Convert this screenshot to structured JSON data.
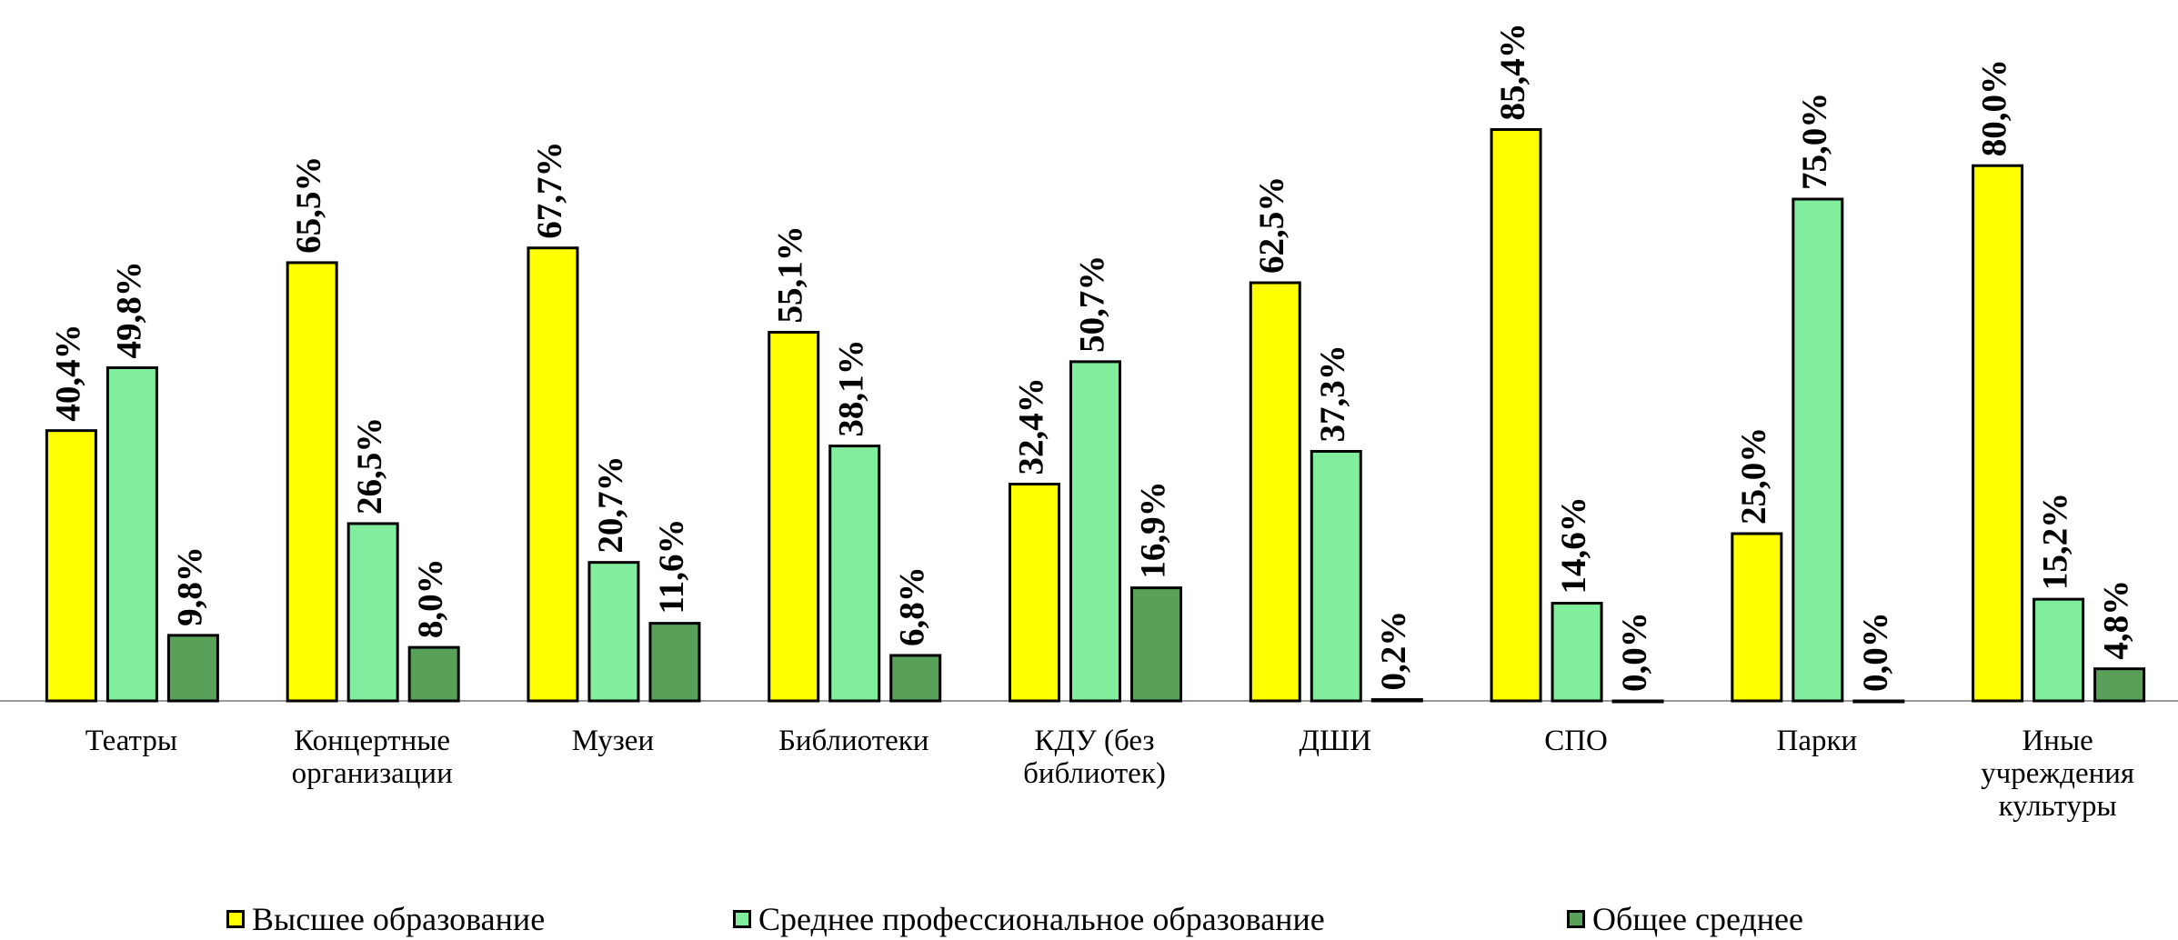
{
  "chart_data": {
    "type": "bar",
    "categories": [
      "Театры",
      "Концертные организации",
      "Музеи",
      "Библиотеки",
      "КДУ (без библиотек)",
      "ДШИ",
      "СПО",
      "Парки",
      "Иные учреждения культуры"
    ],
    "series": [
      {
        "name": "Высшее образование",
        "color": "#ffff00",
        "values": [
          40.4,
          65.5,
          67.7,
          55.1,
          32.4,
          62.5,
          85.4,
          25.0,
          80.0
        ],
        "value_labels": [
          "40,4%",
          "65,5%",
          "67,7%",
          "55,1%",
          "32,4%",
          "62,5%",
          "85,4%",
          "25,0%",
          "80,0%"
        ]
      },
      {
        "name": "Среднее профессиональное образование",
        "color": "#80ee9c",
        "values": [
          49.8,
          26.5,
          20.7,
          38.1,
          50.7,
          37.3,
          14.6,
          75.0,
          15.2
        ],
        "value_labels": [
          "49,8%",
          "26,5%",
          "20,7%",
          "38,1%",
          "50,7%",
          "37,3%",
          "14,6%",
          "75,0%",
          "15,2%"
        ]
      },
      {
        "name": "Общее среднее",
        "color": "#59a059",
        "values": [
          9.8,
          8.0,
          11.6,
          6.8,
          16.9,
          0.2,
          0.0,
          0.0,
          4.8
        ],
        "value_labels": [
          "9,8%",
          "8,0%",
          "11,6%",
          "6,8%",
          "16,9%",
          "0,2%",
          "0,0%",
          "0,0%",
          "4,8%"
        ]
      }
    ],
    "ylim": [
      0,
      100
    ],
    "legend": "bottom"
  }
}
